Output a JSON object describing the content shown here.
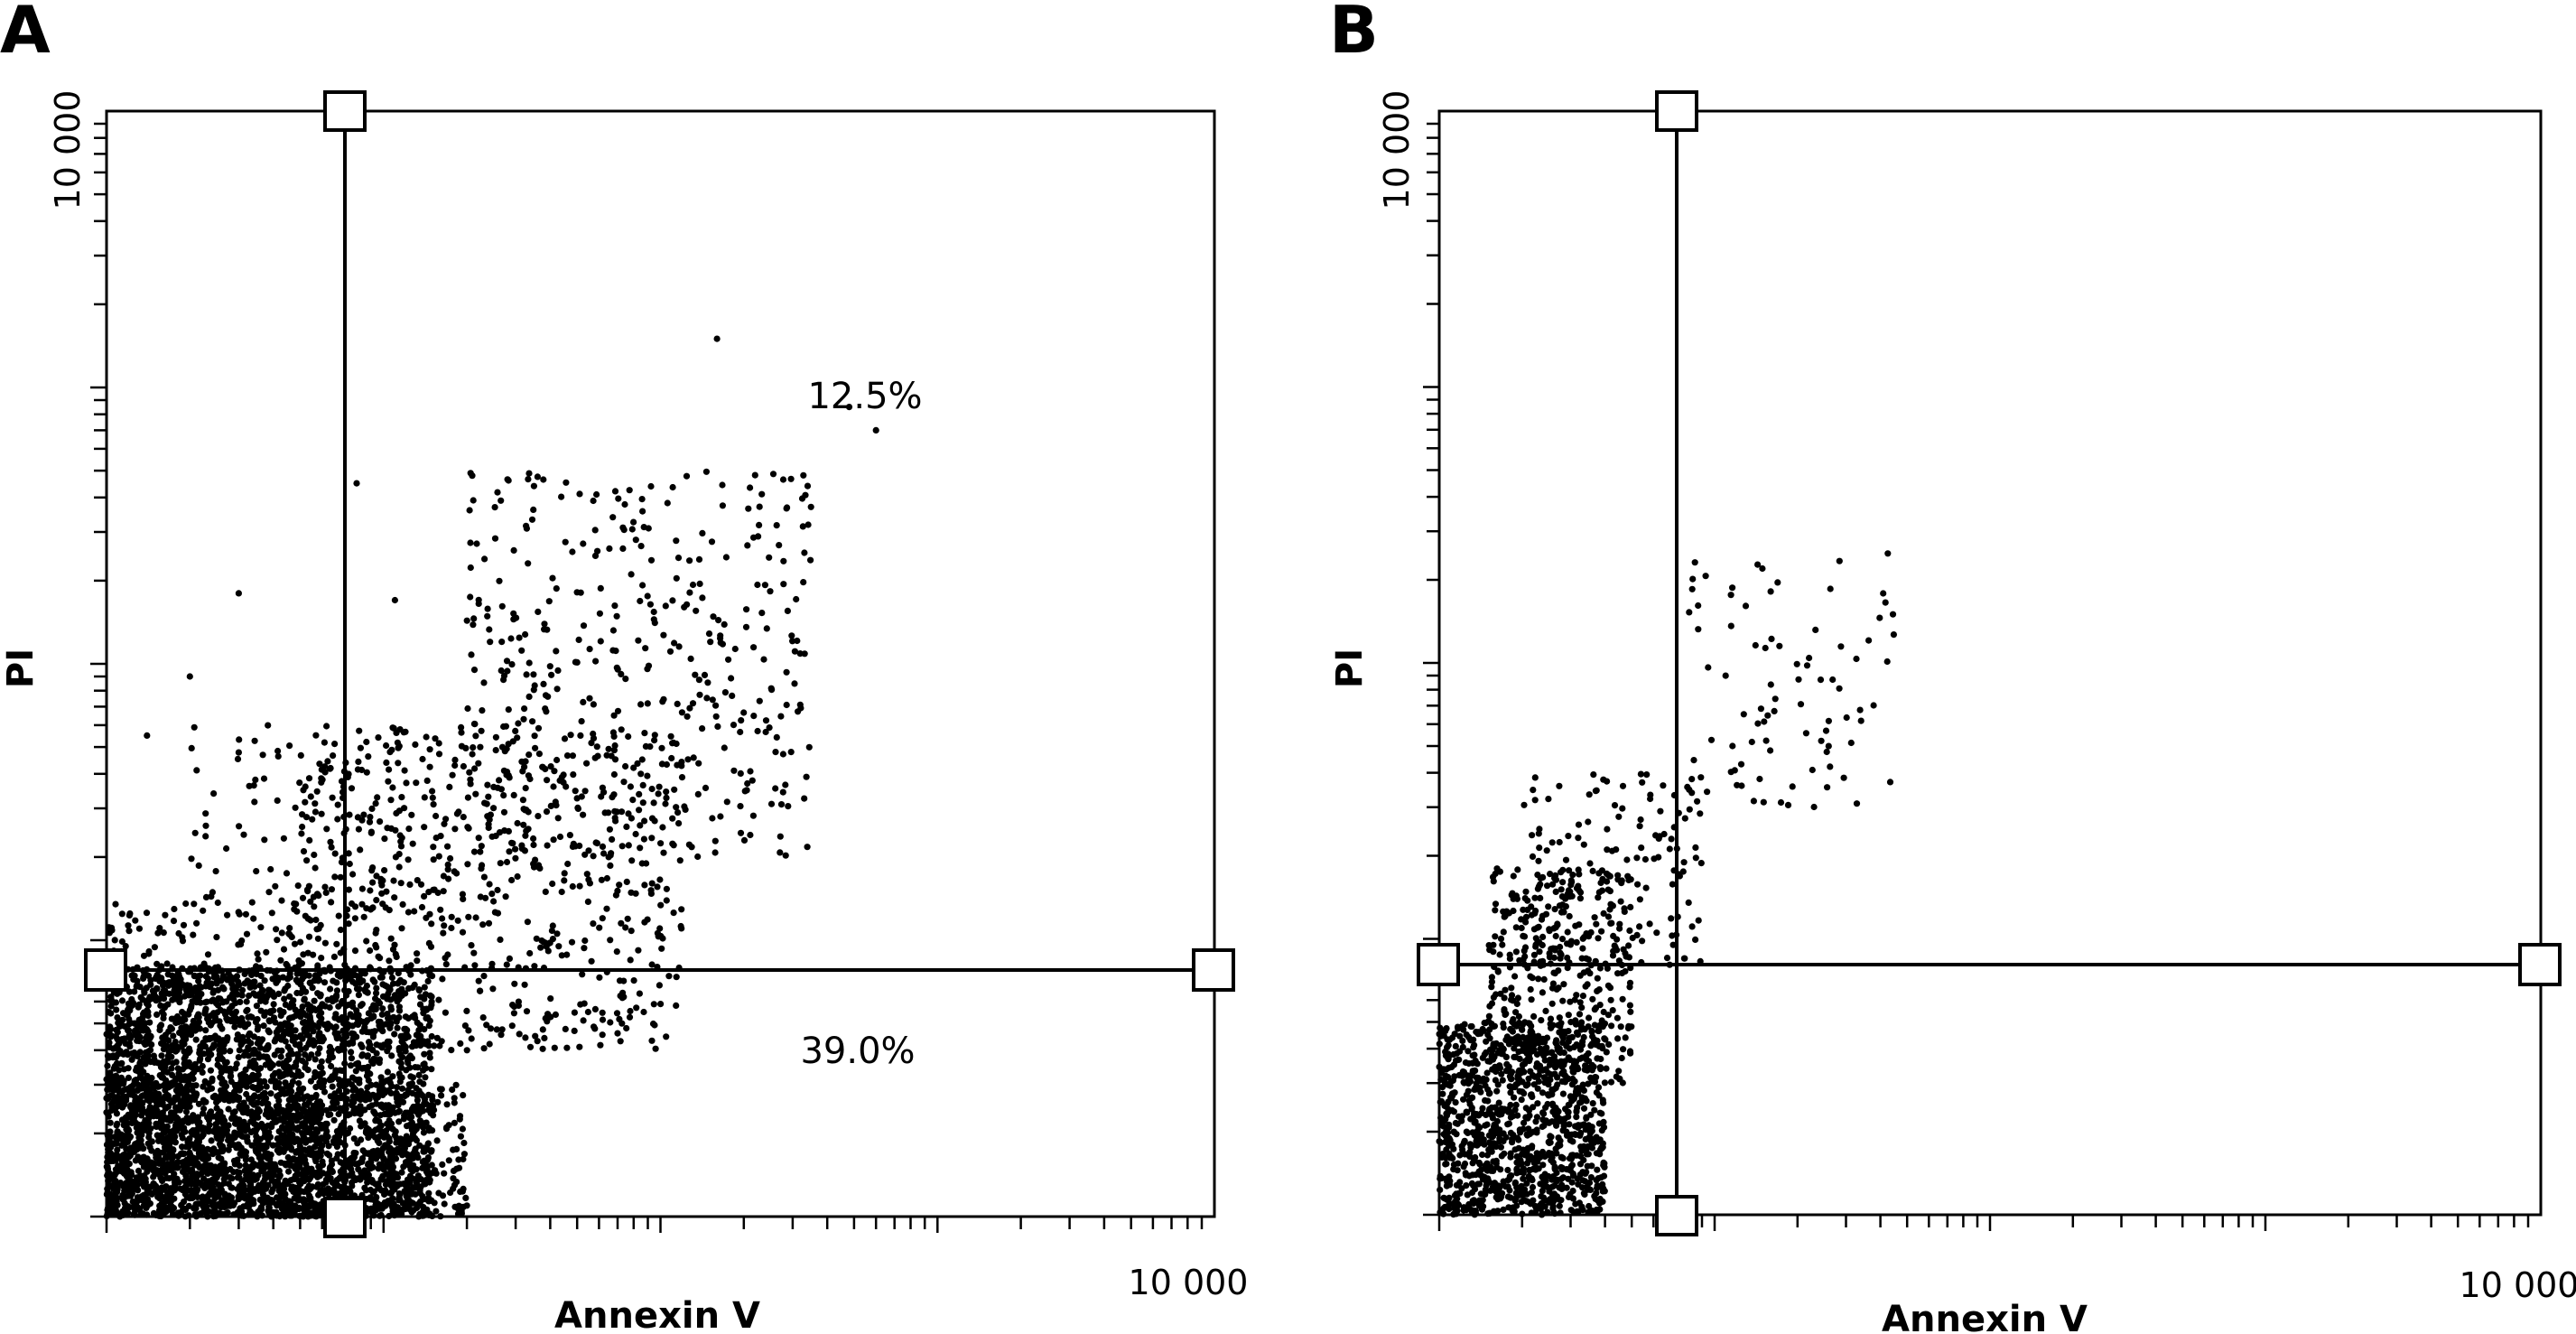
{
  "chart_data": [
    {
      "panel": "A",
      "type": "scatter",
      "xlabel": "Annexin V",
      "ylabel": "PI",
      "x_scale": "log",
      "y_scale": "log",
      "xlim": [
        1,
        10000
      ],
      "ylim": [
        1,
        10000
      ],
      "x_tick_label": "10 000",
      "y_tick_label": "10 000",
      "gate": {
        "x": 2.4,
        "y": 13.0
      },
      "quadrant_labels": [
        {
          "text": "12.5%",
          "x": 200,
          "y": 3000
        },
        {
          "text": "39.0%",
          "x": 200,
          "y": 2.5
        }
      ],
      "populations": [
        {
          "x": [
            1.0,
            15.0
          ],
          "y": [
            1.0,
            8.0
          ],
          "n": 2600
        },
        {
          "x": [
            1.0,
            6.0
          ],
          "y": [
            1.0,
            14.0
          ],
          "n": 500
        },
        {
          "x": [
            5.0,
            120.0
          ],
          "y": [
            4.0,
            60.0
          ],
          "n": 650
        },
        {
          "x": [
            20.0,
            350.0
          ],
          "y": [
            20.0,
            500.0
          ],
          "n": 420
        },
        {
          "x": [
            2.0,
            25.0
          ],
          "y": [
            12.0,
            60.0
          ],
          "n": 120
        },
        {
          "x": [
            1.0,
            20.0
          ],
          "y": [
            1.0,
            3.0
          ],
          "n": 900
        }
      ],
      "outliers": [
        {
          "x": 160,
          "y": 1500
        },
        {
          "x": 600,
          "y": 700
        },
        {
          "x": 480,
          "y": 850
        },
        {
          "x": 8,
          "y": 450
        },
        {
          "x": 1.4,
          "y": 55
        },
        {
          "x": 2.0,
          "y": 90
        },
        {
          "x": 11,
          "y": 170
        },
        {
          "x": 3.0,
          "y": 180
        }
      ]
    },
    {
      "panel": "B",
      "type": "scatter",
      "xlabel": "Annexin V",
      "ylabel": "PI",
      "x_scale": "log",
      "y_scale": "log",
      "xlim": [
        1,
        10000
      ],
      "ylim": [
        1,
        10000
      ],
      "x_tick_label": "10 000",
      "y_tick_label": "10 000",
      "gate": {
        "x": 2.4,
        "y": 13.5
      },
      "quadrant_labels": [],
      "populations": [
        {
          "x": [
            1.0,
            4.0
          ],
          "y": [
            1.0,
            5.0
          ],
          "n": 1100
        },
        {
          "x": [
            1.5,
            5.0
          ],
          "y": [
            3.0,
            18.0
          ],
          "n": 350
        },
        {
          "x": [
            2.0,
            9.0
          ],
          "y": [
            8.0,
            40.0
          ],
          "n": 160
        },
        {
          "x": [
            8.0,
            45.0
          ],
          "y": [
            30.0,
            250.0
          ],
          "n": 90
        }
      ],
      "outliers": [
        {
          "x": 4.2,
          "y": 6.0
        },
        {
          "x": 3.3,
          "y": 8.5
        }
      ]
    }
  ]
}
